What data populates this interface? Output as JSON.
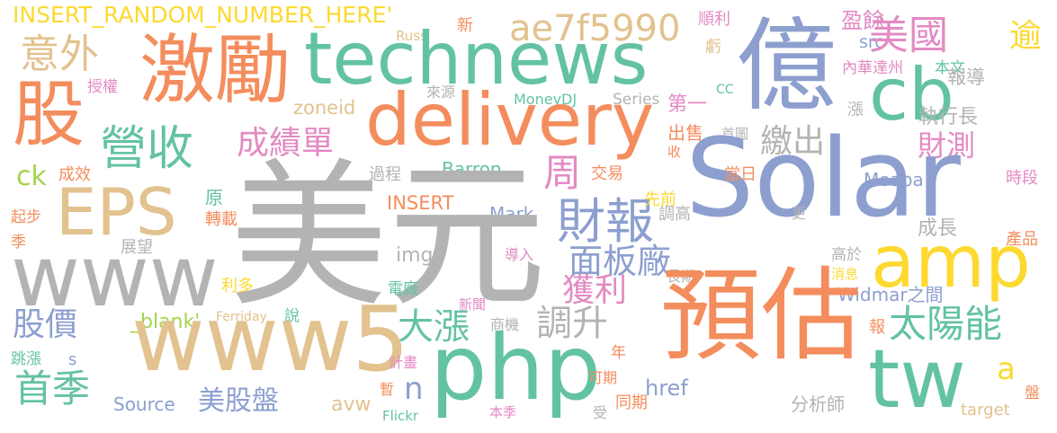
{
  "palette": {
    "orange": "#f48d5d",
    "teal": "#63c2a4",
    "blue": "#8c9fcf",
    "pink": "#e38ac3",
    "green": "#a4d44d",
    "yellow": "#fdd930",
    "tan": "#e2c28e",
    "gray": "#b3b3b3"
  },
  "words": [
    {
      "text": "INSERT_RANDOM_NUMBER_HERE'",
      "color": "yellow"
    },
    {
      "text": "新",
      "color": "orange"
    },
    {
      "text": "Russ",
      "color": "tan"
    },
    {
      "text": "順利",
      "color": "pink"
    },
    {
      "text": "盈餘",
      "color": "pink"
    },
    {
      "text": "虧",
      "color": "tan"
    },
    {
      "text": "逾",
      "color": "yellow"
    },
    {
      "text": "src",
      "color": "blue"
    },
    {
      "text": "意外",
      "color": "tan"
    },
    {
      "text": "激勵",
      "color": "orange"
    },
    {
      "text": "technews",
      "color": "teal"
    },
    {
      "text": "ae7f5990",
      "color": "tan"
    },
    {
      "text": "億",
      "color": "blue"
    },
    {
      "text": "美國",
      "color": "pink"
    },
    {
      "text": "股",
      "color": "orange"
    },
    {
      "text": "cb",
      "color": "teal"
    },
    {
      "text": "內華達州",
      "color": "pink"
    },
    {
      "text": "本文",
      "color": "teal"
    },
    {
      "text": "報導",
      "color": "gray"
    },
    {
      "text": "授權",
      "color": "pink"
    },
    {
      "text": "來源",
      "color": "gray"
    },
    {
      "text": "MoneyDJ",
      "color": "teal"
    },
    {
      "text": "Series",
      "color": "gray"
    },
    {
      "text": "CC",
      "color": "teal"
    },
    {
      "text": "zoneid",
      "color": "tan"
    },
    {
      "text": "delivery",
      "color": "orange"
    },
    {
      "text": "第一",
      "color": "pink"
    },
    {
      "text": "漲",
      "color": "gray"
    },
    {
      "text": "執行長",
      "color": "gray"
    },
    {
      "text": "營收",
      "color": "teal"
    },
    {
      "text": "成績單",
      "color": "pink"
    },
    {
      "text": "出售",
      "color": "orange"
    },
    {
      "text": "首圖",
      "color": "gray"
    },
    {
      "text": "繳出",
      "color": "gray"
    },
    {
      "text": "財測",
      "color": "pink"
    },
    {
      "text": "收",
      "color": "orange"
    },
    {
      "text": "Solar",
      "color": "blue"
    },
    {
      "text": "ck",
      "color": "green"
    },
    {
      "text": "成效",
      "color": "orange"
    },
    {
      "text": "過程",
      "color": "gray"
    },
    {
      "text": "Barron",
      "color": "teal"
    },
    {
      "text": "周",
      "color": "pink"
    },
    {
      "text": "交易",
      "color": "orange"
    },
    {
      "text": "當日",
      "color": "orange"
    },
    {
      "text": "Moapa",
      "color": "blue"
    },
    {
      "text": "時段",
      "color": "pink"
    },
    {
      "text": "EPS",
      "color": "tan"
    },
    {
      "text": "原",
      "color": "teal"
    },
    {
      "text": "INSERT",
      "color": "orange"
    },
    {
      "text": "財報",
      "color": "blue"
    },
    {
      "text": "先前",
      "color": "yellow"
    },
    {
      "text": "更",
      "color": "gray"
    },
    {
      "text": "起步",
      "color": "orange"
    },
    {
      "text": "轉載",
      "color": "orange"
    },
    {
      "text": "Mark",
      "color": "blue"
    },
    {
      "text": "調高",
      "color": "gray"
    },
    {
      "text": "成長",
      "color": "gray"
    },
    {
      "text": "美元",
      "color": "gray"
    },
    {
      "text": "季",
      "color": "orange"
    },
    {
      "text": "產品",
      "color": "orange"
    },
    {
      "text": "www",
      "color": "gray"
    },
    {
      "text": "展望",
      "color": "gray"
    },
    {
      "text": "img",
      "color": "gray"
    },
    {
      "text": "面板廠",
      "color": "blue"
    },
    {
      "text": "amp",
      "color": "yellow"
    },
    {
      "text": "導入",
      "color": "pink"
    },
    {
      "text": "長期",
      "color": "gray"
    },
    {
      "text": "高於",
      "color": "gray"
    },
    {
      "text": "利多",
      "color": "yellow"
    },
    {
      "text": "電廠",
      "color": "teal"
    },
    {
      "text": "獲利",
      "color": "pink"
    },
    {
      "text": "消息",
      "color": "yellow"
    },
    {
      "text": "Widmar之間",
      "color": "blue"
    },
    {
      "text": "股價",
      "color": "blue"
    },
    {
      "text": "_blank'",
      "color": "green"
    },
    {
      "text": "Ferriday",
      "color": "tan"
    },
    {
      "text": "說",
      "color": "teal"
    },
    {
      "text": "新聞",
      "color": "pink"
    },
    {
      "text": "大漲",
      "color": "teal"
    },
    {
      "text": "www5",
      "color": "tan"
    },
    {
      "text": "商機",
      "color": "gray"
    },
    {
      "text": "調升",
      "color": "gray"
    },
    {
      "text": "預估",
      "color": "orange"
    },
    {
      "text": "太陽能",
      "color": "teal"
    },
    {
      "text": "報",
      "color": "orange"
    },
    {
      "text": "年",
      "color": "orange"
    },
    {
      "text": "s",
      "color": "blue"
    },
    {
      "text": "跳漲",
      "color": "teal"
    },
    {
      "text": "計畫",
      "color": "pink"
    },
    {
      "text": "php",
      "color": "teal"
    },
    {
      "text": "a",
      "color": "yellow"
    },
    {
      "text": "首季",
      "color": "teal"
    },
    {
      "text": "n",
      "color": "blue"
    },
    {
      "text": "可期",
      "color": "orange"
    },
    {
      "text": "href",
      "color": "blue"
    },
    {
      "text": "tw",
      "color": "teal"
    },
    {
      "text": "暫",
      "color": "orange"
    },
    {
      "text": "Source",
      "color": "blue"
    },
    {
      "text": "美股盤",
      "color": "blue"
    },
    {
      "text": "avw",
      "color": "tan"
    },
    {
      "text": "Flickr",
      "color": "teal"
    },
    {
      "text": "本季",
      "color": "pink"
    },
    {
      "text": "受",
      "color": "gray"
    },
    {
      "text": "同期",
      "color": "orange"
    },
    {
      "text": "分析師",
      "color": "gray"
    },
    {
      "text": "target",
      "color": "tan"
    },
    {
      "text": "盤",
      "color": "orange"
    }
  ]
}
